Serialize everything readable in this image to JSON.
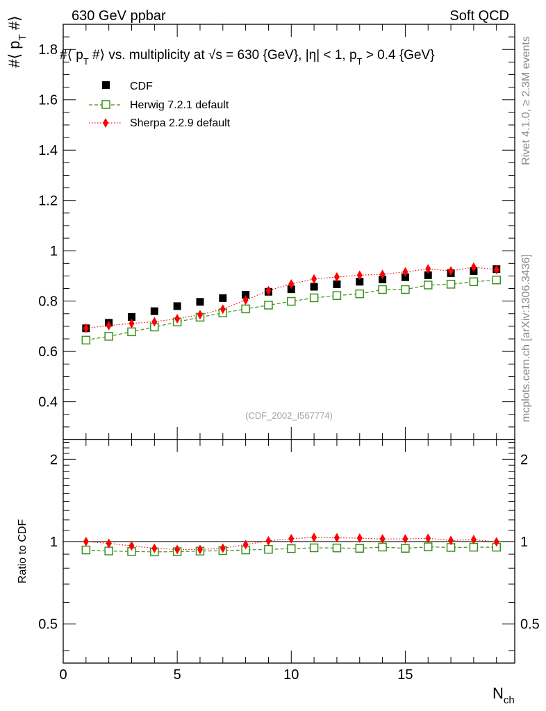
{
  "header": {
    "left": "630 GeV ppbar",
    "right": "Soft QCD"
  },
  "side_labels": {
    "rivet": "Rivet 4.1.0, ≥ 2.3M events",
    "mcplots": "mcplots.cern.ch [arXiv:1306.3436]"
  },
  "colors": {
    "cdf": "#000000",
    "herwig": "#3a8f1a",
    "sherpa": "#ff0000"
  },
  "chart_data": [
    {
      "type": "scatter",
      "title": "#⟨ p_T #⟩ vs. multiplicity at √s = 630 {GeV}, |η| < 1, p_T > 0.4 {GeV}",
      "title_parts": {
        "a": "#⟨ p",
        "b": "T",
        "c": " #⟩ vs. multiplicity at ",
        "d": "√",
        "e": "s = 630 {GeV}, |η| < 1, p",
        "f": "T",
        "g": " > 0.4 {GeV}"
      },
      "ylabel_parts": {
        "a": "#⟨ p",
        "b": "T",
        "c": " #⟩"
      },
      "watermark": "(CDF_2002_I567774)",
      "xlim": [
        0,
        19.8
      ],
      "ylim": [
        0.25,
        1.9
      ],
      "yticks": [
        0.4,
        0.6,
        0.8,
        1.0,
        1.2,
        1.4,
        1.6,
        1.8
      ],
      "ytick_labels": [
        "0.4",
        "0.6",
        "0.8",
        "1",
        "1.2",
        "1.4",
        "1.6",
        "1.8"
      ],
      "x": [
        1,
        2,
        3,
        4,
        5,
        6,
        7,
        8,
        9,
        10,
        11,
        12,
        13,
        14,
        15,
        16,
        17,
        18,
        19
      ],
      "series": [
        {
          "name": "CDF",
          "marker": "square-filled",
          "values": [
            0.692,
            0.714,
            0.737,
            0.76,
            0.78,
            0.797,
            0.812,
            0.825,
            0.837,
            0.847,
            0.857,
            0.867,
            0.877,
            0.886,
            0.895,
            0.903,
            0.911,
            0.919,
            0.927
          ]
        },
        {
          "name": "Herwig 7.2.1 default",
          "marker": "square-open",
          "line": "dashed",
          "values": [
            0.645,
            0.66,
            0.678,
            0.697,
            0.717,
            0.736,
            0.753,
            0.769,
            0.784,
            0.799,
            0.813,
            0.822,
            0.829,
            0.846,
            0.846,
            0.864,
            0.867,
            0.877,
            0.884
          ]
        },
        {
          "name": "Sherpa 2.2.9 default",
          "marker": "diamond-filled",
          "line": "dotted",
          "values": [
            0.692,
            0.703,
            0.711,
            0.718,
            0.73,
            0.746,
            0.768,
            0.804,
            0.842,
            0.868,
            0.888,
            0.896,
            0.903,
            0.906,
            0.916,
            0.928,
            0.92,
            0.935,
            0.925
          ]
        }
      ]
    },
    {
      "type": "scatter",
      "ylabel": "Ratio to CDF",
      "xlabel": "N",
      "xlabel_sub": "ch",
      "xlim": [
        0,
        19.8
      ],
      "ylim": [
        0.36,
        2.36
      ],
      "yticks": [
        0.5,
        1,
        2
      ],
      "ytick_labels": [
        "0.5",
        "1",
        "2"
      ],
      "xticks": [
        0,
        5,
        10,
        15
      ],
      "xtick_labels": [
        "0",
        "5",
        "10",
        "15"
      ],
      "x": [
        1,
        2,
        3,
        4,
        5,
        6,
        7,
        8,
        9,
        10,
        11,
        12,
        13,
        14,
        15,
        16,
        17,
        18,
        19
      ],
      "series": [
        {
          "name": "Herwig 7.2.1 default",
          "values": [
            0.932,
            0.924,
            0.92,
            0.917,
            0.919,
            0.923,
            0.927,
            0.932,
            0.937,
            0.943,
            0.949,
            0.948,
            0.945,
            0.955,
            0.945,
            0.957,
            0.952,
            0.954,
            0.954
          ]
        },
        {
          "name": "Sherpa 2.2.9 default",
          "values": [
            1.0,
            0.985,
            0.965,
            0.945,
            0.936,
            0.936,
            0.946,
            0.975,
            1.006,
            1.025,
            1.036,
            1.033,
            1.03,
            1.023,
            1.023,
            1.028,
            1.01,
            1.017,
            0.998
          ]
        }
      ]
    }
  ]
}
